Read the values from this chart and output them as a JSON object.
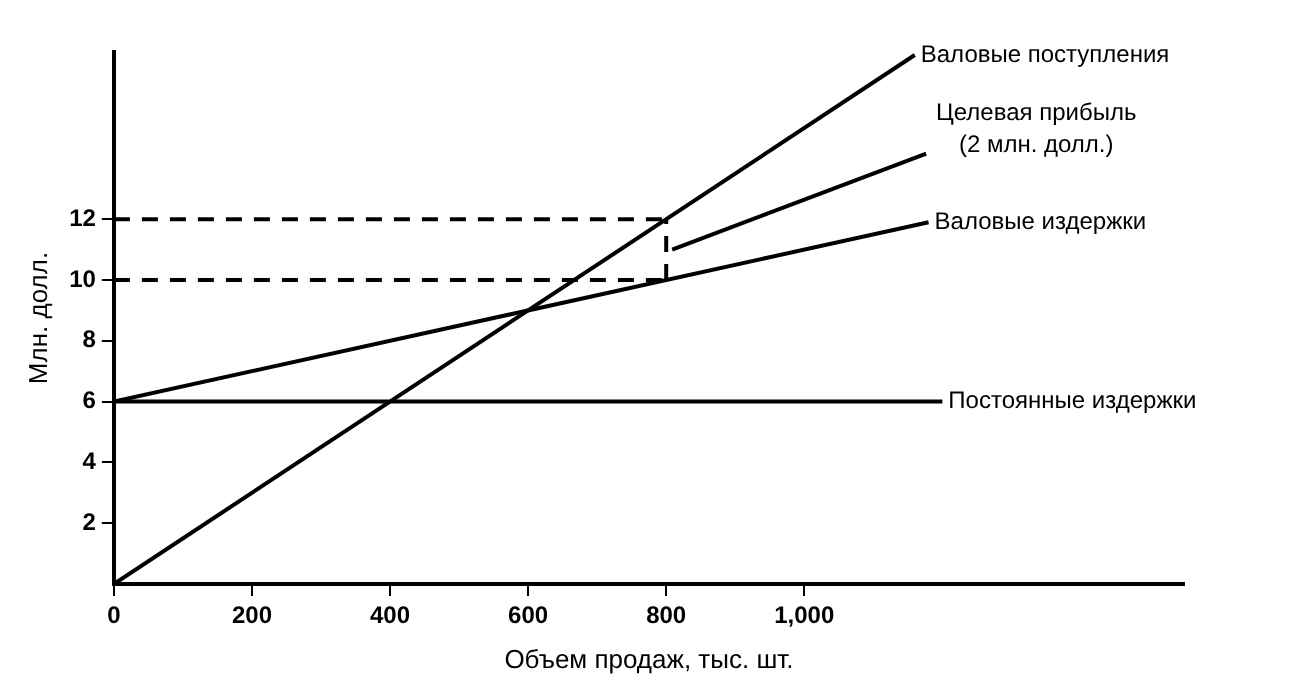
{
  "chart_data": {
    "type": "line",
    "xlabel": "Объем продаж, тыс. шт.",
    "ylabel": "Млн. долл.",
    "xlim": [
      0,
      1550
    ],
    "ylim": [
      0,
      17.5
    ],
    "xticks": [
      0,
      200,
      400,
      600,
      800,
      {
        "value": 1000,
        "label": "1,000"
      }
    ],
    "yticks": [
      2,
      4,
      6,
      8,
      10,
      12
    ],
    "grid": false,
    "legend": false,
    "marker": "none",
    "series": [
      {
        "name": "Валовые поступления",
        "color": "#000000",
        "x": [
          0,
          1160
        ],
        "values": [
          0,
          17.4
        ]
      },
      {
        "name": "Валовые издержки",
        "color": "#000000",
        "x": [
          0,
          1180
        ],
        "values": [
          6,
          11.9
        ]
      },
      {
        "name": "Постоянные издержки",
        "color": "#000000",
        "x": [
          0,
          1200
        ],
        "values": [
          6,
          6
        ]
      },
      {
        "color": "#000000",
        "line_style": "dashed",
        "x": [
          0,
          800
        ],
        "values": [
          12,
          12
        ]
      },
      {
        "color": "#000000",
        "line_style": "dashed",
        "x": [
          0,
          800
        ],
        "values": [
          10,
          10
        ]
      },
      {
        "color": "#000000",
        "line_style": "dashed",
        "x": [
          800,
          800
        ],
        "values": [
          10,
          12
        ]
      }
    ],
    "annotations": [
      {
        "text": "Целевая прибыль\n(2 млн. долл.)",
        "x": 800,
        "y": 11
      }
    ]
  }
}
